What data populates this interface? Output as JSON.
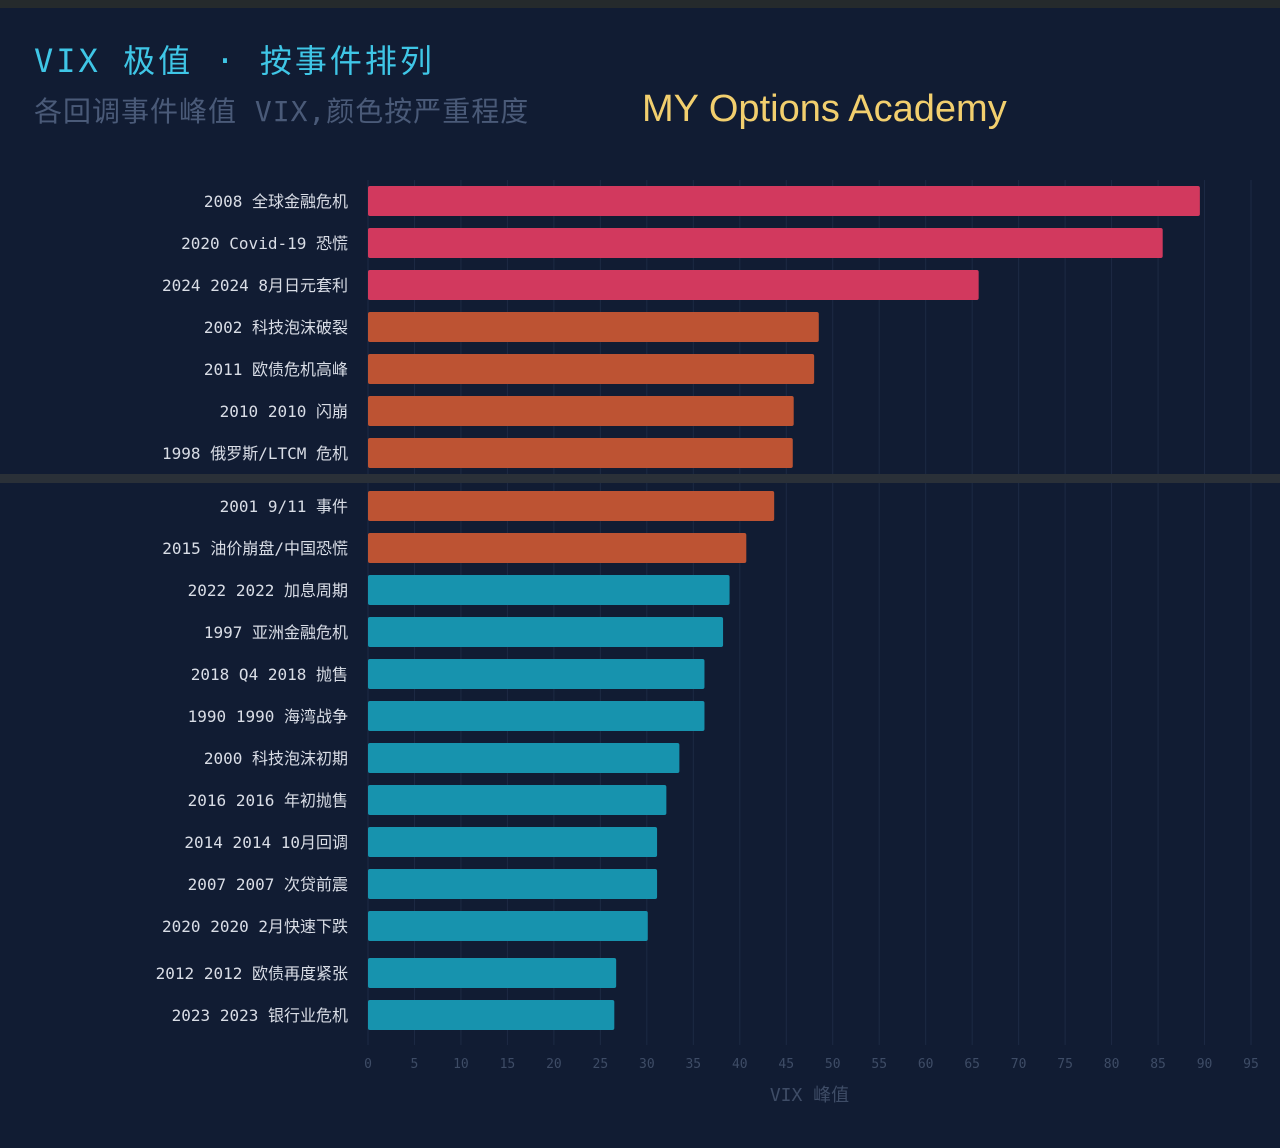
{
  "header": {
    "title": "VIX 极值 · 按事件排列",
    "subtitle": "各回调事件峰值 VIX,颜色按严重程度",
    "brand": "MY Options Academy"
  },
  "colors": {
    "background": "#111c33",
    "severe": "#d2395e",
    "high": "#bd5333",
    "moderate": "#1793ae",
    "grid": "#1d2a44",
    "tick_text": "#3e4c66",
    "label_text": "#d9dde6",
    "title": "#3fc6e6",
    "brand": "#f2cf6e"
  },
  "chart_data": {
    "type": "bar",
    "orientation": "horizontal",
    "categories": [
      "2008 全球金融危机",
      "2020 Covid-19 恐慌",
      "2024 2024 8月日元套利",
      "2002 科技泡沫破裂",
      "2011 欧债危机高峰",
      "2010 2010 闪崩",
      "1998 俄罗斯/LTCM 危机",
      "2001 9/11 事件",
      "2015 油价崩盘/中国恐慌",
      "2022 2022 加息周期",
      "1997 亚洲金融危机",
      "2018 Q4 2018 抛售",
      "1990 1990 海湾战争",
      "2000 科技泡沫初期",
      "2016 2016 年初抛售",
      "2014 2014 10月回调",
      "2007 2007 次贷前震",
      "2020 2020 2月快速下跌",
      "2012 2012 欧债再度紧张",
      "2023 2023 银行业危机"
    ],
    "values": [
      89.5,
      85.5,
      65.7,
      48.5,
      48.0,
      45.8,
      45.7,
      43.7,
      40.7,
      38.9,
      38.2,
      36.2,
      36.2,
      33.5,
      32.1,
      31.1,
      31.1,
      30.1,
      26.7,
      26.5
    ],
    "severity": [
      "severe",
      "severe",
      "severe",
      "high",
      "high",
      "high",
      "high",
      "high",
      "high",
      "moderate",
      "moderate",
      "moderate",
      "moderate",
      "moderate",
      "moderate",
      "moderate",
      "moderate",
      "moderate",
      "moderate",
      "moderate"
    ],
    "xlim": [
      0,
      95
    ],
    "xticks": [
      "0",
      "5",
      "10",
      "15",
      "20",
      "25",
      "30",
      "35",
      "40",
      "45",
      "50",
      "55",
      "60",
      "65",
      "70",
      "75",
      "80",
      "85",
      "90",
      "95"
    ],
    "xlabel": "VIX 峰值",
    "grid": "vertical"
  }
}
